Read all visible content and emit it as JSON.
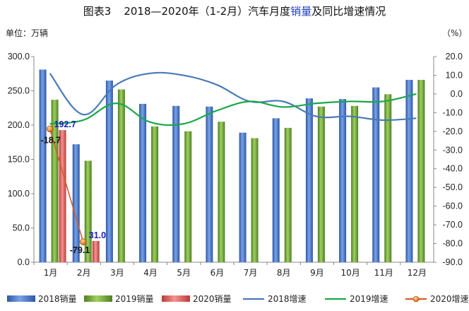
{
  "chart_data": {
    "type": "bar",
    "title": {
      "prefix": "图表3",
      "main_a": "2018—2020年（1-2月）汽车月度",
      "highlight": "销量",
      "main_b": "及同比增速情况",
      "highlight_color": "#1f3fbf"
    },
    "left_unit": "单位：万辆",
    "right_unit": "（%）",
    "categories": [
      "1月",
      "2月",
      "3月",
      "4月",
      "5月",
      "6月",
      "7月",
      "8月",
      "9月",
      "10月",
      "11月",
      "12月"
    ],
    "y_left": {
      "min": 0,
      "max": 300,
      "ticks": [
        "0.0",
        "50.0",
        "100.0",
        "150.0",
        "200.0",
        "250.0",
        "300.0"
      ]
    },
    "y_right": {
      "min": -90,
      "max": 20,
      "ticks": [
        "20.0",
        "10.0",
        "0.0",
        "-10.0",
        "-20.0",
        "-30.0",
        "-40.0",
        "-50.0",
        "-60.0",
        "-70.0",
        "-80.0",
        "-90.0"
      ]
    },
    "bar_series": [
      {
        "name": "2018销量",
        "color": "#4a78c8",
        "values": [
          281,
          172,
          265,
          231,
          228,
          227,
          189,
          210,
          239,
          238,
          255,
          266
        ]
      },
      {
        "name": "2019销量",
        "color": "#6ea23a",
        "values": [
          237,
          148,
          252,
          198,
          191,
          205,
          181,
          196,
          227,
          228,
          245,
          266
        ]
      },
      {
        "name": "2020销量",
        "color": "#e0625c",
        "values": [
          192.7,
          31.0
        ]
      }
    ],
    "line_series": [
      {
        "name": "2018增速",
        "color": "#4a7ab8",
        "values": [
          11,
          -11,
          5,
          11,
          10,
          5,
          -4,
          -4,
          -12,
          -12,
          -14,
          -13
        ]
      },
      {
        "name": "2019增速",
        "color": "#1aa84a",
        "values": [
          -16,
          -14,
          -5,
          -15,
          -16,
          -9,
          -4,
          -7,
          -5,
          -4,
          -4,
          0
        ]
      },
      {
        "name": "2020增速",
        "color": "#d85a2a",
        "values": [
          -18.7,
          -79.1
        ]
      }
    ],
    "data_labels": {
      "sales_2020": [
        "192.7",
        "31.0"
      ],
      "growth_2020": [
        "-18.7",
        "-79.1"
      ]
    },
    "legend": [
      "2018销量",
      "2019销量",
      "2020销量",
      "2018增速",
      "2019增速",
      "2020增速"
    ],
    "legend_position": "bottom"
  }
}
